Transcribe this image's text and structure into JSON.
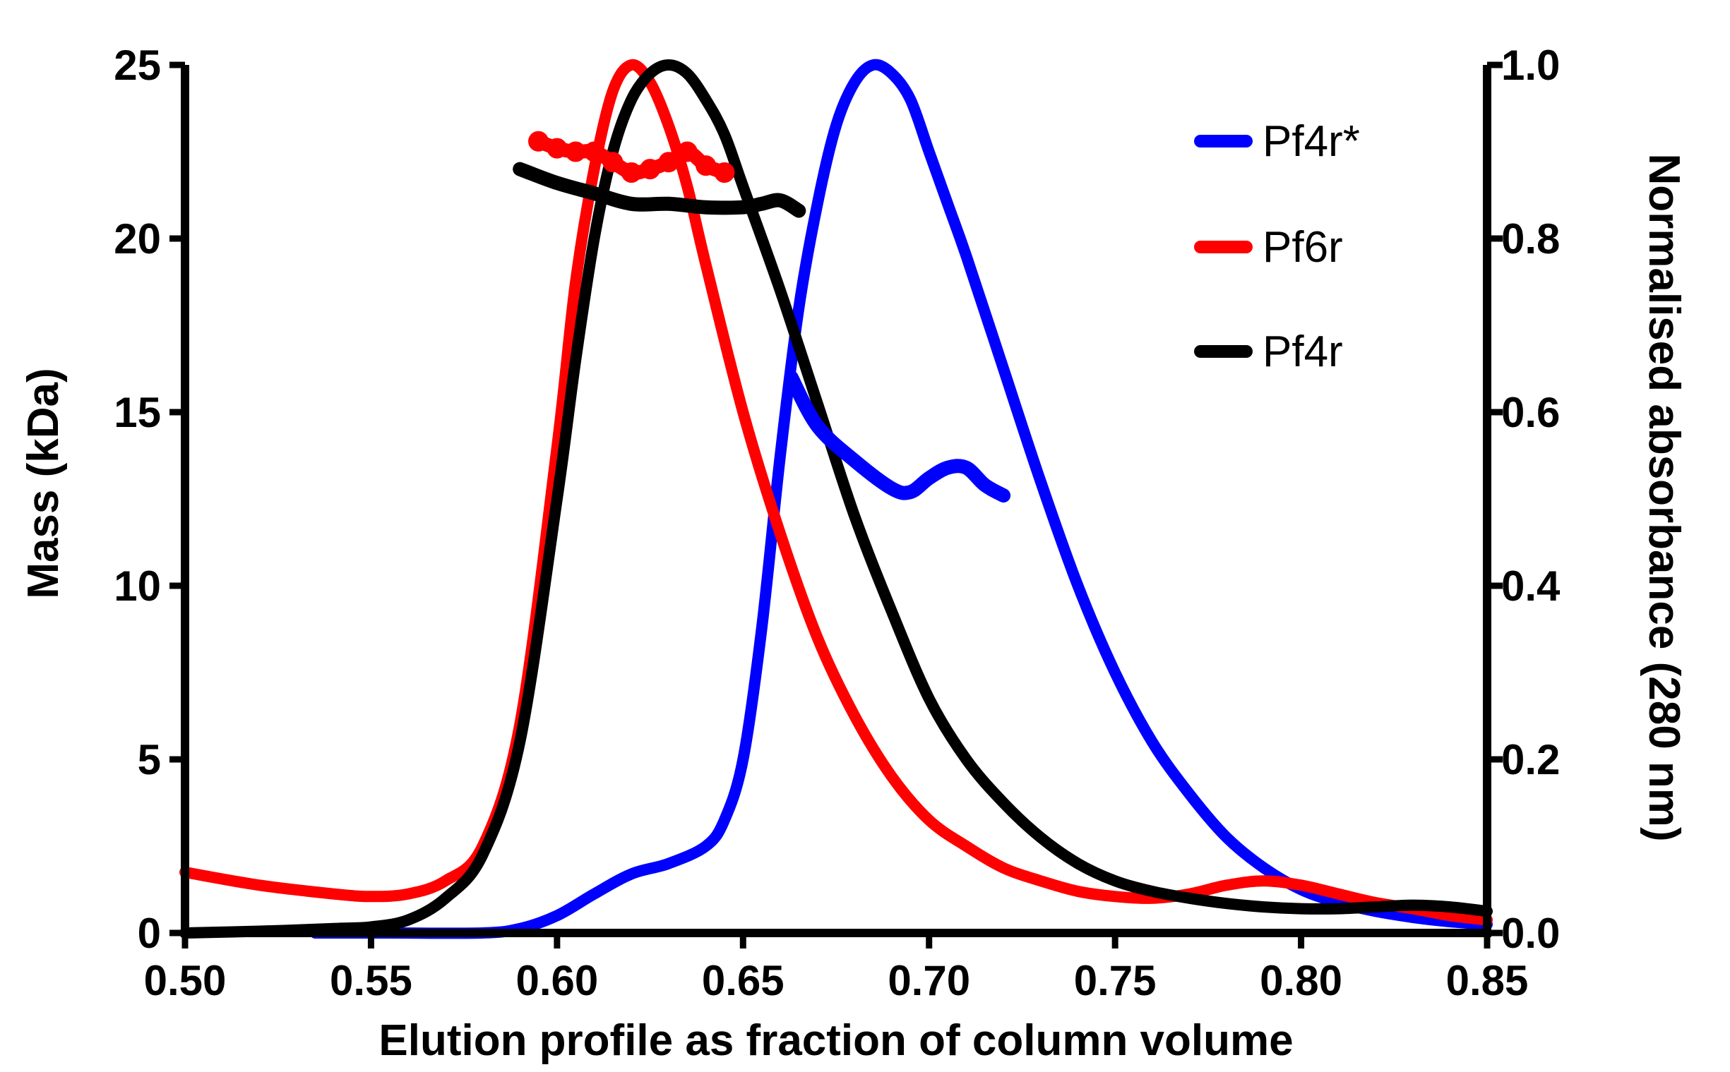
{
  "chart_data": {
    "type": "line",
    "title": "",
    "xlabel": "Elution profile as fraction of column volume",
    "ylabel_left": "Mass (kDa)",
    "ylabel_right": "Normalised absorbance (280 nm)",
    "xlim": [
      0.5,
      0.85
    ],
    "ylim_left": [
      0,
      25
    ],
    "ylim_right": [
      0,
      1.0
    ],
    "x_ticks": [
      "0.50",
      "0.55",
      "0.60",
      "0.65",
      "0.70",
      "0.75",
      "0.80",
      "0.85"
    ],
    "y_left_ticks": [
      "0",
      "5",
      "10",
      "15",
      "20",
      "25"
    ],
    "y_right_ticks": [
      "0.0",
      "0.2",
      "0.4",
      "0.6",
      "0.8",
      "1.0"
    ],
    "grid": false,
    "legend_position": "top-right",
    "colors": {
      "Pf4r*": "#0000ff",
      "Pf6r": "#ff0000",
      "Pf4r": "#000000"
    },
    "legend": [
      {
        "label": "Pf4r*",
        "color": "#0000ff"
      },
      {
        "label": "Pf6r",
        "color": "#ff0000"
      },
      {
        "label": "Pf4r",
        "color": "#000000"
      }
    ],
    "absorbance_series": [
      {
        "name": "Pf4r*",
        "color": "#0000ff",
        "axis": "right",
        "x": [
          0.535,
          0.555,
          0.58,
          0.59,
          0.6,
          0.61,
          0.62,
          0.63,
          0.64,
          0.645,
          0.65,
          0.655,
          0.66,
          0.665,
          0.67,
          0.675,
          0.68,
          0.685,
          0.69,
          0.695,
          0.7,
          0.705,
          0.71,
          0.72,
          0.73,
          0.74,
          0.75,
          0.76,
          0.77,
          0.78,
          0.79,
          0.8,
          0.81,
          0.82,
          0.83,
          0.84,
          0.85
        ],
        "y": [
          0.0,
          0.0,
          0.0,
          0.005,
          0.02,
          0.045,
          0.068,
          0.08,
          0.1,
          0.13,
          0.2,
          0.35,
          0.55,
          0.72,
          0.84,
          0.93,
          0.98,
          1.0,
          0.99,
          0.96,
          0.9,
          0.84,
          0.78,
          0.65,
          0.52,
          0.4,
          0.3,
          0.22,
          0.16,
          0.11,
          0.075,
          0.05,
          0.035,
          0.025,
          0.018,
          0.013,
          0.01
        ]
      },
      {
        "name": "Pf6r",
        "color": "#ff0000",
        "axis": "right",
        "x": [
          0.5,
          0.52,
          0.54,
          0.55,
          0.56,
          0.57,
          0.58,
          0.59,
          0.6,
          0.605,
          0.61,
          0.615,
          0.62,
          0.625,
          0.63,
          0.635,
          0.64,
          0.65,
          0.66,
          0.67,
          0.68,
          0.69,
          0.7,
          0.71,
          0.72,
          0.73,
          0.74,
          0.75,
          0.76,
          0.77,
          0.78,
          0.79,
          0.8,
          0.81,
          0.82,
          0.83,
          0.84,
          0.85
        ],
        "y": [
          0.07,
          0.055,
          0.045,
          0.042,
          0.045,
          0.06,
          0.1,
          0.24,
          0.56,
          0.75,
          0.88,
          0.97,
          1.0,
          0.98,
          0.93,
          0.86,
          0.77,
          0.6,
          0.46,
          0.34,
          0.25,
          0.18,
          0.13,
          0.1,
          0.075,
          0.06,
          0.048,
          0.042,
          0.04,
          0.045,
          0.055,
          0.06,
          0.055,
          0.045,
          0.035,
          0.028,
          0.02,
          0.015
        ]
      },
      {
        "name": "Pf4r",
        "color": "#000000",
        "axis": "right",
        "x": [
          0.5,
          0.52,
          0.54,
          0.55,
          0.56,
          0.57,
          0.58,
          0.59,
          0.6,
          0.605,
          0.61,
          0.615,
          0.62,
          0.625,
          0.63,
          0.635,
          0.64,
          0.645,
          0.65,
          0.66,
          0.67,
          0.68,
          0.69,
          0.7,
          0.71,
          0.72,
          0.73,
          0.74,
          0.75,
          0.76,
          0.77,
          0.78,
          0.79,
          0.8,
          0.81,
          0.82,
          0.83,
          0.84,
          0.85
        ],
        "y": [
          0.0,
          0.002,
          0.005,
          0.007,
          0.015,
          0.04,
          0.09,
          0.22,
          0.5,
          0.66,
          0.8,
          0.9,
          0.96,
          0.99,
          1.0,
          0.99,
          0.96,
          0.92,
          0.86,
          0.74,
          0.61,
          0.48,
          0.37,
          0.27,
          0.2,
          0.15,
          0.11,
          0.08,
          0.06,
          0.048,
          0.04,
          0.034,
          0.03,
          0.028,
          0.028,
          0.03,
          0.032,
          0.03,
          0.025
        ]
      }
    ],
    "mass_series": [
      {
        "name": "Pf4r*",
        "color": "#0000ff",
        "axis": "left",
        "style": "thick",
        "x": [
          0.663,
          0.67,
          0.68,
          0.69,
          0.695,
          0.7,
          0.705,
          0.71,
          0.715,
          0.72
        ],
        "y": [
          16.0,
          14.6,
          13.6,
          12.8,
          12.7,
          13.1,
          13.4,
          13.4,
          12.9,
          12.6
        ]
      },
      {
        "name": "Pf6r",
        "color": "#ff0000",
        "axis": "left",
        "style": "markers",
        "x": [
          0.595,
          0.6,
          0.605,
          0.61,
          0.615,
          0.62,
          0.625,
          0.63,
          0.635,
          0.64,
          0.645
        ],
        "y": [
          22.8,
          22.6,
          22.5,
          22.5,
          22.2,
          21.9,
          22.0,
          22.2,
          22.5,
          22.1,
          21.9
        ]
      },
      {
        "name": "Pf4r",
        "color": "#000000",
        "axis": "left",
        "style": "thick",
        "x": [
          0.59,
          0.6,
          0.61,
          0.62,
          0.63,
          0.64,
          0.65,
          0.655,
          0.66,
          0.665
        ],
        "y": [
          22.0,
          21.6,
          21.3,
          21.0,
          21.0,
          20.9,
          20.9,
          21.0,
          21.1,
          20.8
        ]
      }
    ]
  }
}
